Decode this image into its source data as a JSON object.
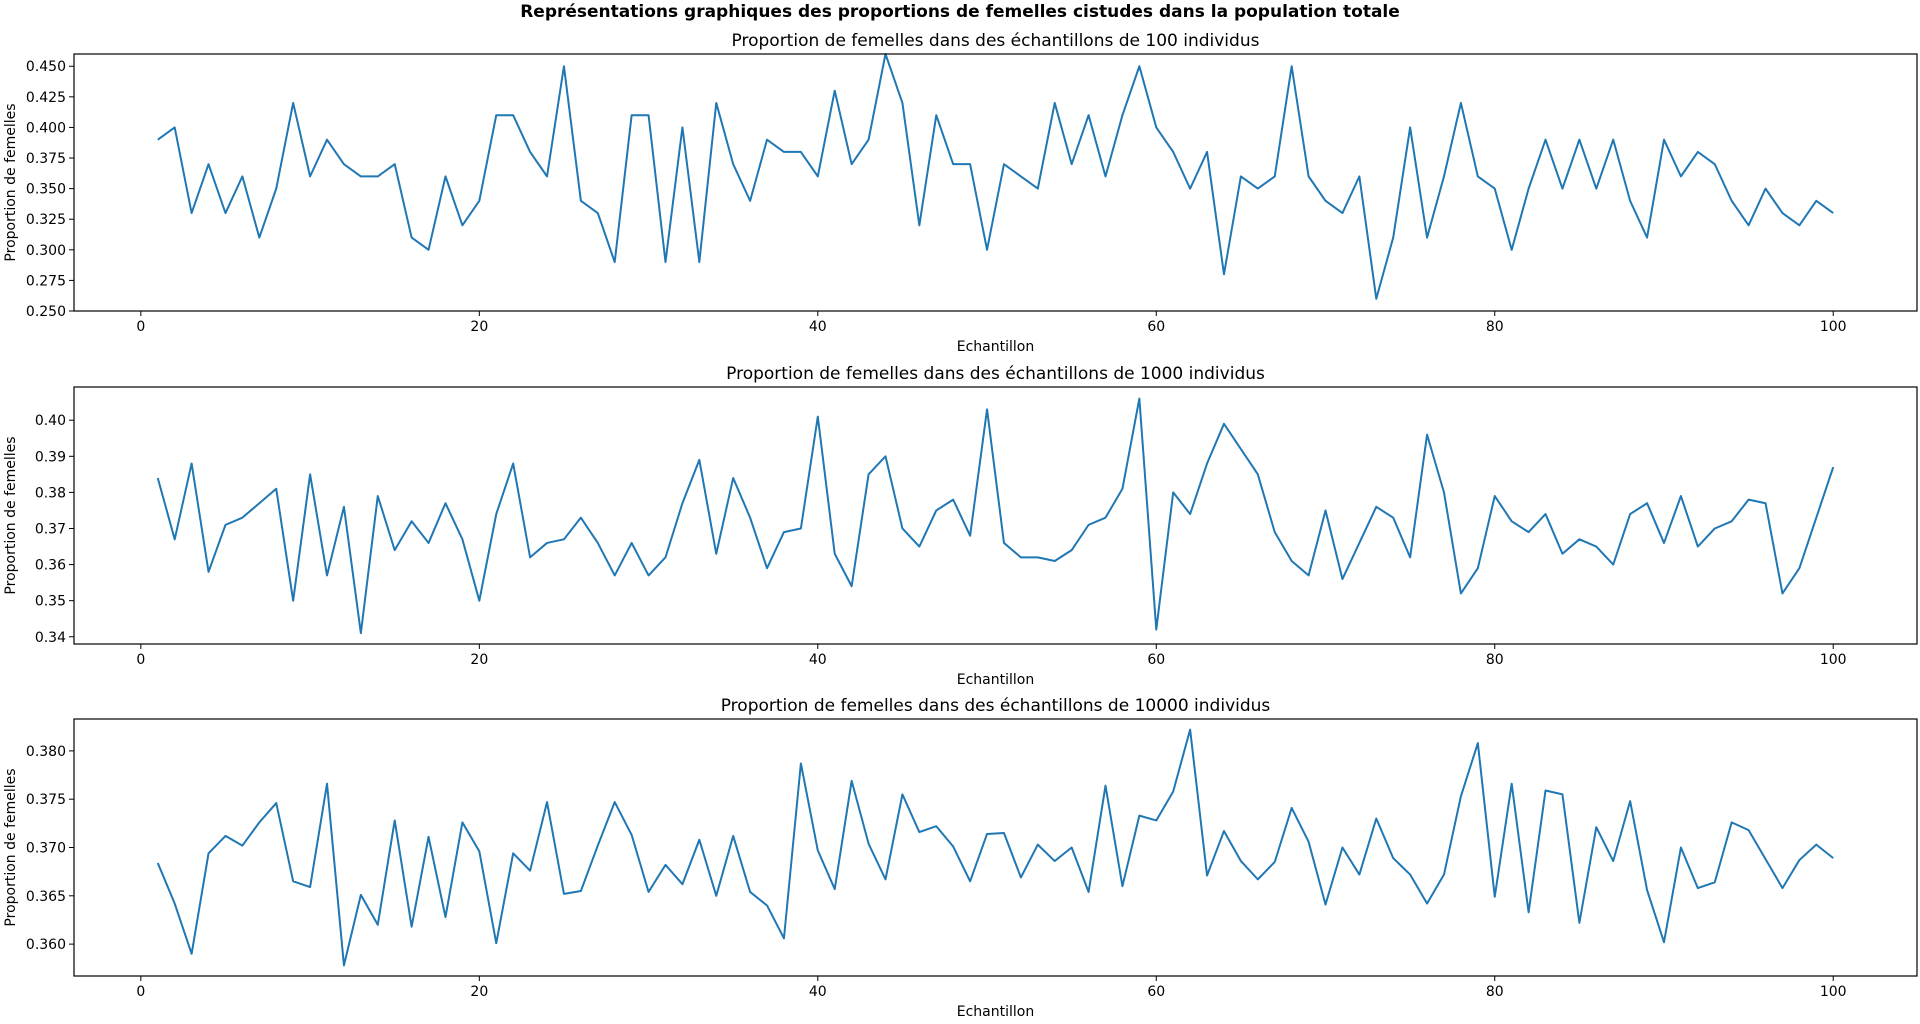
{
  "figure": {
    "suptitle": "Représentations graphiques des proportions de femelles cistudes dans la population totale",
    "line_color": "#1f77b4"
  },
  "chart_data": [
    {
      "type": "line",
      "title": "Proportion de femelles dans des échantillons de 100 individus",
      "xlabel": "Echantillon",
      "ylabel": "Proportion de femelles",
      "xlim": [
        -3.95,
        104.95
      ],
      "ylim": [
        0.25,
        0.46
      ],
      "xticks": [
        0,
        20,
        40,
        60,
        80,
        100
      ],
      "yticks": [
        0.25,
        0.275,
        0.3,
        0.325,
        0.35,
        0.375,
        0.4,
        0.425,
        0.45
      ],
      "ytick_labels": [
        "0.250",
        "0.275",
        "0.300",
        "0.325",
        "0.350",
        "0.375",
        "0.400",
        "0.425",
        "0.450"
      ],
      "x_start": 1,
      "values": [
        0.39,
        0.4,
        0.33,
        0.37,
        0.33,
        0.36,
        0.31,
        0.35,
        0.42,
        0.36,
        0.39,
        0.37,
        0.36,
        0.36,
        0.37,
        0.31,
        0.3,
        0.36,
        0.32,
        0.34,
        0.41,
        0.41,
        0.38,
        0.36,
        0.45,
        0.34,
        0.33,
        0.29,
        0.41,
        0.41,
        0.29,
        0.4,
        0.29,
        0.42,
        0.37,
        0.34,
        0.39,
        0.38,
        0.38,
        0.36,
        0.43,
        0.37,
        0.39,
        0.46,
        0.42,
        0.32,
        0.41,
        0.37,
        0.37,
        0.3,
        0.37,
        0.36,
        0.35,
        0.42,
        0.37,
        0.41,
        0.36,
        0.41,
        0.45,
        0.4,
        0.38,
        0.35,
        0.38,
        0.28,
        0.36,
        0.35,
        0.36,
        0.45,
        0.36,
        0.34,
        0.33,
        0.36,
        0.26,
        0.31,
        0.4,
        0.31,
        0.36,
        0.42,
        0.36,
        0.35,
        0.3,
        0.35,
        0.39,
        0.35,
        0.39,
        0.35,
        0.39,
        0.34,
        0.31,
        0.39,
        0.36,
        0.38,
        0.37,
        0.34,
        0.32,
        0.35,
        0.33,
        0.32,
        0.34,
        0.33
      ]
    },
    {
      "type": "line",
      "title": "Proportion de femelles dans des échantillons de 1000 individus",
      "xlabel": "Echantillon",
      "ylabel": "Proportion de femelles",
      "xlim": [
        -3.95,
        104.95
      ],
      "ylim": [
        0.338,
        0.4092
      ],
      "xticks": [
        0,
        20,
        40,
        60,
        80,
        100
      ],
      "yticks": [
        0.34,
        0.35,
        0.36,
        0.37,
        0.38,
        0.39,
        0.4
      ],
      "ytick_labels": [
        "0.34",
        "0.35",
        "0.36",
        "0.37",
        "0.38",
        "0.39",
        "0.40"
      ],
      "x_start": 1,
      "values": [
        0.384,
        0.367,
        0.388,
        0.358,
        0.371,
        0.373,
        0.377,
        0.381,
        0.35,
        0.385,
        0.357,
        0.376,
        0.341,
        0.379,
        0.364,
        0.372,
        0.366,
        0.377,
        0.367,
        0.35,
        0.374,
        0.388,
        0.362,
        0.366,
        0.367,
        0.373,
        0.366,
        0.357,
        0.366,
        0.357,
        0.362,
        0.377,
        0.389,
        0.363,
        0.384,
        0.373,
        0.359,
        0.369,
        0.37,
        0.401,
        0.363,
        0.354,
        0.385,
        0.39,
        0.37,
        0.365,
        0.375,
        0.378,
        0.368,
        0.403,
        0.366,
        0.362,
        0.362,
        0.361,
        0.364,
        0.371,
        0.373,
        0.381,
        0.406,
        0.342,
        0.38,
        0.374,
        0.388,
        0.399,
        0.392,
        0.385,
        0.369,
        0.361,
        0.357,
        0.375,
        0.356,
        0.366,
        0.376,
        0.373,
        0.362,
        0.396,
        0.38,
        0.352,
        0.359,
        0.379,
        0.372,
        0.369,
        0.374,
        0.363,
        0.367,
        0.365,
        0.36,
        0.374,
        0.377,
        0.366,
        0.379,
        0.365,
        0.37,
        0.372,
        0.378,
        0.377,
        0.352,
        0.359,
        0.373,
        0.387
      ]
    },
    {
      "type": "line",
      "title": "Proportion de femelles dans des échantillons de 10000 individus",
      "xlabel": "Echantillon",
      "ylabel": "Proportion de femelles",
      "xlim": [
        -3.95,
        104.95
      ],
      "ylim": [
        0.3567,
        0.3833
      ],
      "xticks": [
        0,
        20,
        40,
        60,
        80,
        100
      ],
      "yticks": [
        0.36,
        0.365,
        0.37,
        0.375,
        0.38
      ],
      "ytick_labels": [
        "0.360",
        "0.365",
        "0.370",
        "0.375",
        "0.380"
      ],
      "x_start": 1,
      "values": [
        0.3684,
        0.3642,
        0.359,
        0.3694,
        0.3712,
        0.3702,
        0.3726,
        0.3746,
        0.3665,
        0.3659,
        0.3766,
        0.3578,
        0.3651,
        0.362,
        0.3728,
        0.3618,
        0.3711,
        0.3628,
        0.3726,
        0.3696,
        0.3601,
        0.3694,
        0.3676,
        0.3747,
        0.3652,
        0.3655,
        0.3702,
        0.3747,
        0.3713,
        0.3654,
        0.3682,
        0.3662,
        0.3708,
        0.365,
        0.3712,
        0.3654,
        0.364,
        0.3606,
        0.3787,
        0.3697,
        0.3657,
        0.3769,
        0.3704,
        0.3667,
        0.3755,
        0.3716,
        0.3722,
        0.3701,
        0.3665,
        0.3714,
        0.3715,
        0.3669,
        0.3703,
        0.3686,
        0.37,
        0.3654,
        0.3764,
        0.366,
        0.3733,
        0.3728,
        0.3758,
        0.3822,
        0.3671,
        0.3717,
        0.3686,
        0.3667,
        0.3685,
        0.3741,
        0.3706,
        0.3641,
        0.37,
        0.3672,
        0.373,
        0.3689,
        0.3672,
        0.3642,
        0.3672,
        0.3753,
        0.3808,
        0.3649,
        0.3766,
        0.3633,
        0.3759,
        0.3755,
        0.3622,
        0.3721,
        0.3686,
        0.3748,
        0.3656,
        0.3602,
        0.37,
        0.3658,
        0.3664,
        0.3726,
        0.3718,
        0.3688,
        0.3658,
        0.3687,
        0.3703,
        0.3689
      ]
    }
  ]
}
